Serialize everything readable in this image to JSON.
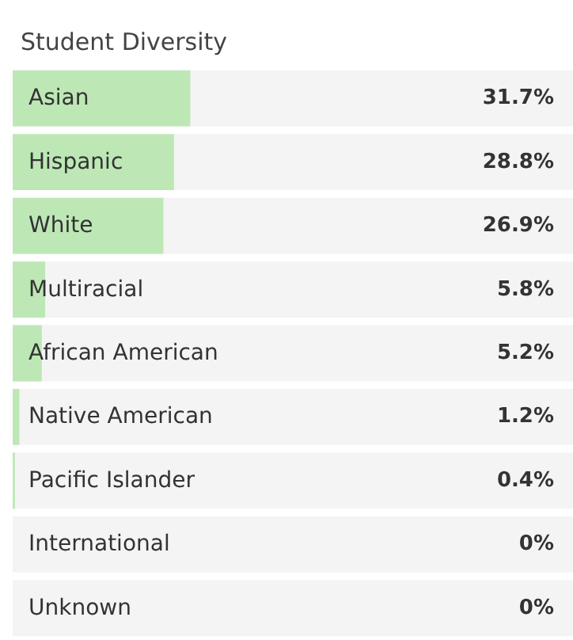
{
  "chart_data": {
    "type": "bar",
    "orientation": "horizontal",
    "title": "Student Diversity",
    "categories": [
      "Asian",
      "Hispanic",
      "White",
      "Multiracial",
      "African American",
      "Native American",
      "Pacific Islander",
      "International",
      "Unknown"
    ],
    "values": [
      31.7,
      28.8,
      26.9,
      5.8,
      5.2,
      1.2,
      0.4,
      0,
      0
    ],
    "value_labels": [
      "31.7%",
      "28.8%",
      "26.9%",
      "5.8%",
      "5.2%",
      "1.2%",
      "0.4%",
      "0%",
      "0%"
    ],
    "color": "#bde8b6",
    "xlim": [
      0,
      100
    ],
    "tick_labels": "y"
  }
}
